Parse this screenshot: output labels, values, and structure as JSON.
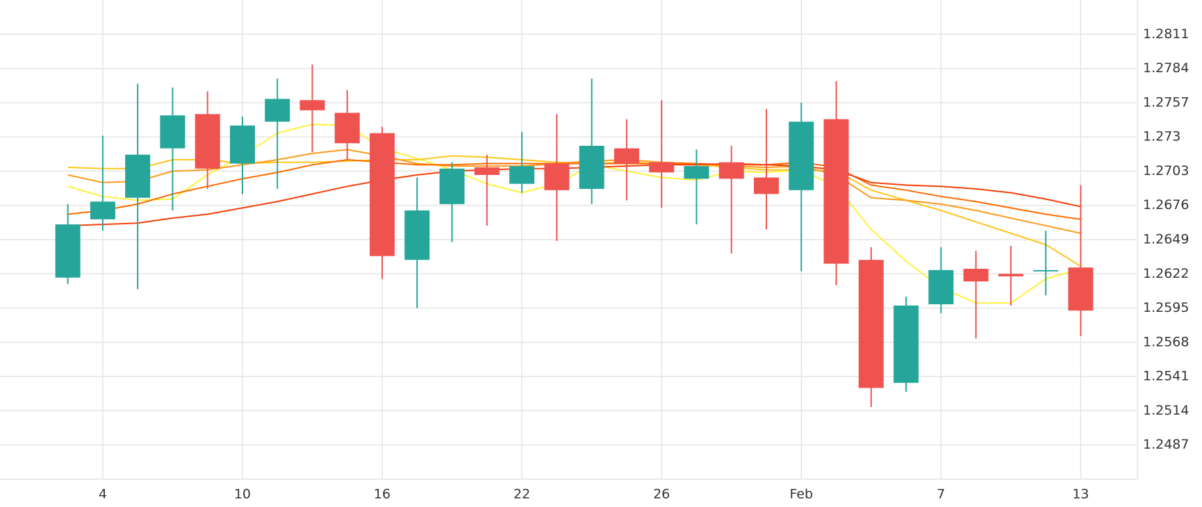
{
  "chart_data": {
    "type": "candlestick",
    "categories": [
      null,
      "4",
      null,
      null,
      null,
      "10",
      null,
      null,
      null,
      "16",
      null,
      null,
      null,
      "22",
      null,
      null,
      null,
      "26",
      null,
      null,
      null,
      "Feb",
      null,
      null,
      null,
      "7",
      null,
      null,
      null,
      "13"
    ],
    "open": [
      1.2619,
      1.2665,
      1.2682,
      1.2721,
      1.2748,
      1.2709,
      1.2742,
      1.2759,
      1.2749,
      1.2733,
      1.2633,
      1.2677,
      1.2706,
      1.2693,
      1.2709,
      1.2689,
      1.2721,
      1.271,
      1.2697,
      1.271,
      1.2698,
      1.2688,
      1.2744,
      1.2633,
      1.2536,
      1.2598,
      1.2626,
      1.2622,
      1.2624,
      1.2627
    ],
    "high": [
      1.2677,
      1.2731,
      1.2772,
      1.2769,
      1.2766,
      1.2746,
      1.2776,
      1.2787,
      1.2767,
      1.2738,
      1.2698,
      1.271,
      1.2716,
      1.2734,
      1.2748,
      1.2776,
      1.2744,
      1.2759,
      1.272,
      1.2723,
      1.2752,
      1.2757,
      1.2774,
      1.2643,
      1.2604,
      1.2643,
      1.264,
      1.2644,
      1.2656,
      1.2692
    ],
    "low": [
      1.2614,
      1.2656,
      1.261,
      1.2672,
      1.2689,
      1.2685,
      1.2689,
      1.2718,
      1.2712,
      1.2618,
      1.2595,
      1.2647,
      1.266,
      1.2686,
      1.2648,
      1.2677,
      1.268,
      1.2674,
      1.2661,
      1.2638,
      1.2657,
      1.2624,
      1.2613,
      1.2517,
      1.2529,
      1.2591,
      1.2571,
      1.2597,
      1.2605,
      1.2573
    ],
    "close": [
      1.2661,
      1.2679,
      1.2716,
      1.2747,
      1.2705,
      1.2739,
      1.276,
      1.2751,
      1.2725,
      1.2636,
      1.2672,
      1.2705,
      1.27,
      1.2707,
      1.2688,
      1.2723,
      1.2709,
      1.2702,
      1.2707,
      1.2697,
      1.2685,
      1.2742,
      1.263,
      1.2532,
      1.2597,
      1.2625,
      1.2616,
      1.262,
      1.2625,
      1.2593
    ],
    "up_color": "#26a69a",
    "down_color": "#ef5350",
    "series": [
      {
        "color": "#fff03a",
        "values": [
          1.2691,
          1.2683,
          1.268,
          1.2681,
          1.27,
          1.2715,
          1.2733,
          1.274,
          1.2739,
          1.2721,
          1.2713,
          1.2704,
          1.2693,
          1.2686,
          1.2693,
          1.2708,
          1.2703,
          1.2698,
          1.2696,
          1.2703,
          1.2702,
          1.2704,
          1.2691,
          1.2657,
          1.2632,
          1.2611,
          1.2599,
          1.2599,
          1.2618,
          1.2626
        ]
      },
      {
        "color": "#ffc51a",
        "values": [
          1.2706,
          1.2705,
          1.2705,
          1.2712,
          1.2712,
          1.2709,
          1.271,
          1.271,
          1.2711,
          1.2712,
          1.2712,
          1.2715,
          1.2714,
          1.2712,
          1.271,
          1.2709,
          1.271,
          1.2709,
          1.2708,
          1.2706,
          1.2704,
          1.2704,
          1.2703,
          1.2688,
          1.268,
          1.2672,
          1.2663,
          1.2654,
          1.2645,
          1.2628
        ]
      },
      {
        "color": "#ff9a1a",
        "values": [
          1.27,
          1.2694,
          1.2695,
          1.2703,
          1.2704,
          1.2708,
          1.2712,
          1.2717,
          1.272,
          1.2715,
          1.2709,
          1.2707,
          1.2707,
          1.2707,
          1.2709,
          1.2711,
          1.2712,
          1.271,
          1.2709,
          1.2707,
          1.2706,
          1.2707,
          1.27,
          1.2682,
          1.268,
          1.2677,
          1.2672,
          1.2666,
          1.266,
          1.2654
        ]
      },
      {
        "color": "#ff6a00",
        "values": [
          1.2669,
          1.2672,
          1.2677,
          1.2685,
          1.2691,
          1.2697,
          1.2702,
          1.2708,
          1.2712,
          1.271,
          1.2708,
          1.2708,
          1.2709,
          1.2709,
          1.2709,
          1.2709,
          1.2709,
          1.2709,
          1.2709,
          1.2708,
          1.2708,
          1.271,
          1.2706,
          1.2692,
          1.2688,
          1.2683,
          1.2679,
          1.2674,
          1.2669,
          1.2665
        ]
      },
      {
        "color": "#f4400a",
        "values": [
          1.266,
          1.2661,
          1.2662,
          1.2666,
          1.2669,
          1.2674,
          1.2679,
          1.2685,
          1.2691,
          1.2696,
          1.27,
          1.2703,
          1.2704,
          1.2705,
          1.2705,
          1.2706,
          1.2707,
          1.2708,
          1.2708,
          1.2709,
          1.2708,
          1.2707,
          1.2704,
          1.2694,
          1.2692,
          1.2691,
          1.2689,
          1.2686,
          1.2681,
          1.2675
        ]
      }
    ],
    "ylim": [
      1.246,
      1.2838
    ],
    "yticks": [
      1.2487,
      1.2514,
      1.2541,
      1.2568,
      1.2595,
      1.2622,
      1.2649,
      1.2676,
      1.2703,
      1.273,
      1.2757,
      1.2784,
      1.2811
    ],
    "grid": true
  }
}
